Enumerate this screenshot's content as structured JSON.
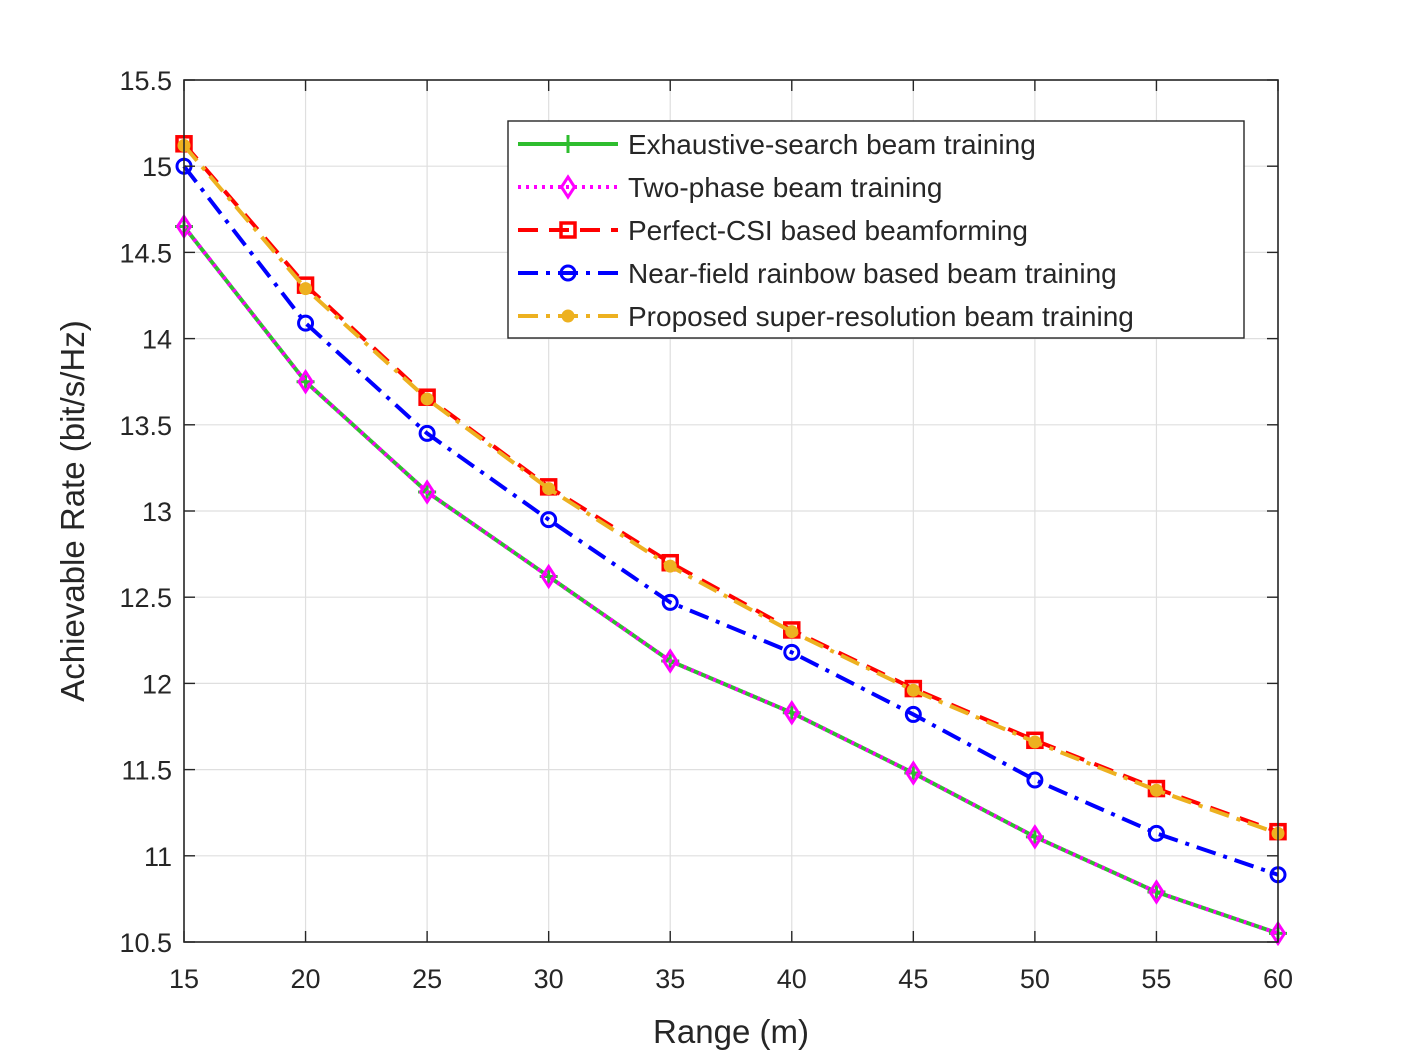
{
  "chart_data": {
    "type": "line",
    "xlabel": "Range (m)",
    "ylabel": "Achievable Rate (bit/s/Hz)",
    "xlim": [
      15,
      60
    ],
    "ylim": [
      10.5,
      15.5
    ],
    "xticks": [
      15,
      20,
      25,
      30,
      35,
      40,
      45,
      50,
      55,
      60
    ],
    "yticks": [
      10.5,
      11,
      11.5,
      12,
      12.5,
      13,
      13.5,
      14,
      14.5,
      15,
      15.5
    ],
    "grid": true,
    "legend_position": "top-right",
    "x": [
      15,
      20,
      25,
      30,
      35,
      40,
      45,
      50,
      55,
      60
    ],
    "series": [
      {
        "name": "Exhaustive-search beam training",
        "color": "#2ebd2e",
        "dash": "solid",
        "marker": "plus",
        "values": [
          14.65,
          13.75,
          13.11,
          12.62,
          12.13,
          11.83,
          11.48,
          11.11,
          10.79,
          10.55
        ]
      },
      {
        "name": "Two-phase beam training",
        "color": "#ff00ff",
        "dash": "dotted",
        "marker": "diamond",
        "values": [
          14.65,
          13.75,
          13.11,
          12.62,
          12.13,
          11.83,
          11.48,
          11.11,
          10.79,
          10.55
        ]
      },
      {
        "name": "Perfect-CSI based beamforming",
        "color": "#ff0000",
        "dash": "dashed",
        "marker": "square",
        "values": [
          15.13,
          14.31,
          13.66,
          13.14,
          12.7,
          12.31,
          11.97,
          11.67,
          11.39,
          11.14
        ]
      },
      {
        "name": "Near-field rainbow based beam training",
        "color": "#0000ff",
        "dash": "dashdot",
        "marker": "circle",
        "values": [
          15.0,
          14.09,
          13.45,
          12.95,
          12.47,
          12.18,
          11.82,
          11.44,
          11.13,
          10.89
        ]
      },
      {
        "name": "Proposed super-resolution beam training",
        "color": "#edb120",
        "dash": "dashdot",
        "marker": "dot",
        "values": [
          15.12,
          14.29,
          13.65,
          13.13,
          12.68,
          12.3,
          11.96,
          11.66,
          11.38,
          11.13
        ]
      }
    ]
  }
}
